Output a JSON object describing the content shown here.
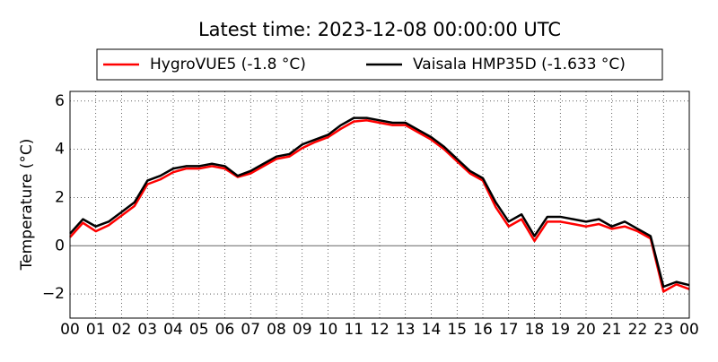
{
  "chart_data": {
    "type": "line",
    "title": "Latest time: 2023-12-08 00:00:00 UTC",
    "ylabel": "Temperature (°C)",
    "x": [
      0,
      0.5,
      1,
      1.5,
      2,
      2.5,
      3,
      3.5,
      4,
      4.5,
      5,
      5.5,
      6,
      6.5,
      7,
      7.5,
      8,
      8.5,
      9,
      9.5,
      10,
      10.5,
      11,
      11.5,
      12,
      12.5,
      13,
      13.5,
      14,
      14.5,
      15,
      15.5,
      16,
      16.5,
      17,
      17.5,
      18,
      18.5,
      19,
      19.5,
      20,
      20.5,
      21,
      21.5,
      22,
      22.5,
      23,
      23.5,
      24
    ],
    "series": [
      {
        "name": "HygroVUE5 (-1.8 °C)",
        "color": "#ff0000",
        "values": [
          0.35,
          0.95,
          0.6,
          0.85,
          1.25,
          1.65,
          2.55,
          2.75,
          3.05,
          3.2,
          3.2,
          3.3,
          3.2,
          2.85,
          3.0,
          3.3,
          3.6,
          3.7,
          4.05,
          4.3,
          4.5,
          4.85,
          5.15,
          5.2,
          5.1,
          5.0,
          5.0,
          4.7,
          4.4,
          4.0,
          3.5,
          3.0,
          2.7,
          1.6,
          0.8,
          1.1,
          0.2,
          1.0,
          1.0,
          0.9,
          0.8,
          0.9,
          0.7,
          0.8,
          0.6,
          0.3,
          -1.9,
          -1.6,
          -1.8
        ]
      },
      {
        "name": "Vaisala HMP35D (-1.633 °C)",
        "color": "#000000",
        "values": [
          0.5,
          1.1,
          0.8,
          1.0,
          1.4,
          1.8,
          2.7,
          2.9,
          3.2,
          3.3,
          3.3,
          3.4,
          3.3,
          2.9,
          3.1,
          3.4,
          3.7,
          3.8,
          4.2,
          4.4,
          4.6,
          5.0,
          5.3,
          5.3,
          5.2,
          5.1,
          5.1,
          4.8,
          4.5,
          4.1,
          3.6,
          3.1,
          2.8,
          1.8,
          1.0,
          1.3,
          0.4,
          1.2,
          1.2,
          1.1,
          1.0,
          1.1,
          0.8,
          1.0,
          0.7,
          0.4,
          -1.7,
          -1.5,
          -1.633
        ]
      }
    ],
    "xlim": [
      0,
      24
    ],
    "xticks": [
      {
        "value": 0,
        "label": "00"
      },
      {
        "value": 1,
        "label": "01"
      },
      {
        "value": 2,
        "label": "02"
      },
      {
        "value": 3,
        "label": "03"
      },
      {
        "value": 4,
        "label": "04"
      },
      {
        "value": 5,
        "label": "05"
      },
      {
        "value": 6,
        "label": "06"
      },
      {
        "value": 7,
        "label": "07"
      },
      {
        "value": 8,
        "label": "08"
      },
      {
        "value": 9,
        "label": "09"
      },
      {
        "value": 10,
        "label": "10"
      },
      {
        "value": 11,
        "label": "11"
      },
      {
        "value": 12,
        "label": "12"
      },
      {
        "value": 13,
        "label": "13"
      },
      {
        "value": 14,
        "label": "14"
      },
      {
        "value": 15,
        "label": "15"
      },
      {
        "value": 16,
        "label": "16"
      },
      {
        "value": 17,
        "label": "17"
      },
      {
        "value": 18,
        "label": "18"
      },
      {
        "value": 19,
        "label": "19"
      },
      {
        "value": 20,
        "label": "20"
      },
      {
        "value": 21,
        "label": "21"
      },
      {
        "value": 22,
        "label": "22"
      },
      {
        "value": 23,
        "label": "23"
      },
      {
        "value": 24,
        "label": "00"
      }
    ],
    "ylim": [
      -3,
      6.4
    ],
    "yticks": [
      {
        "value": -2,
        "label": "−2"
      },
      0,
      2,
      4,
      6
    ],
    "grid": true
  }
}
